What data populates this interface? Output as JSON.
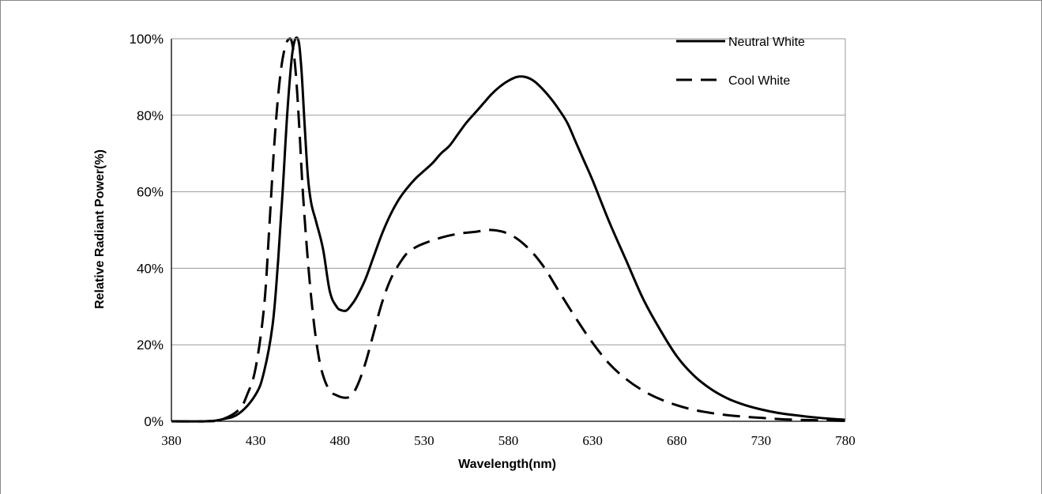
{
  "chart_data": {
    "type": "line",
    "title": "",
    "xlabel": "Wavelength(nm)",
    "ylabel": "Relative Radiant Power(%)",
    "xlim": [
      380,
      780
    ],
    "ylim": [
      0,
      100
    ],
    "x_ticks": [
      380,
      430,
      480,
      530,
      580,
      630,
      680,
      730,
      780
    ],
    "x_tick_labels": [
      "380",
      "430",
      "480",
      "530",
      "580",
      "630",
      "680",
      "730",
      "780"
    ],
    "y_ticks": [
      0,
      20,
      40,
      60,
      80,
      100
    ],
    "y_tick_labels": [
      "0%",
      "20%",
      "40%",
      "60%",
      "80%",
      "100%"
    ],
    "grid": "horizontal",
    "legend_position": "top-right",
    "colors": {
      "line": "#000000",
      "grid": "#999999",
      "frame": "#888888"
    },
    "series": [
      {
        "name": "Neutral White",
        "style": "solid",
        "x": [
          380,
          400,
          410,
          420,
          430,
          435,
          440,
          443,
          446,
          449,
          452,
          455,
          457,
          459,
          461,
          463,
          466,
          470,
          474,
          478,
          481,
          484,
          487,
          490,
          495,
          500,
          505,
          510,
          515,
          520,
          525,
          530,
          535,
          540,
          545,
          550,
          555,
          560,
          565,
          570,
          575,
          580,
          585,
          590,
          595,
          600,
          605,
          610,
          615,
          620,
          625,
          630,
          640,
          650,
          660,
          670,
          680,
          690,
          700,
          710,
          720,
          730,
          740,
          750,
          760,
          770,
          780
        ],
        "y": [
          0,
          0,
          0.5,
          2,
          7,
          13,
          25,
          40,
          60,
          82,
          97,
          100,
          93,
          78,
          64,
          57,
          52,
          45,
          34,
          30,
          29,
          29,
          30.5,
          32.5,
          37,
          43,
          49,
          54,
          58,
          61,
          63.5,
          65.5,
          67.5,
          70,
          72,
          75,
          78,
          80.5,
          83,
          85.5,
          87.5,
          89,
          90,
          90,
          89,
          87,
          84.5,
          81.5,
          78,
          73,
          68,
          63,
          52,
          42,
          32,
          24,
          17,
          12,
          8.5,
          6,
          4.3,
          3.1,
          2.2,
          1.6,
          1.1,
          0.7,
          0.4
        ]
      },
      {
        "name": "Cool White",
        "style": "dashed",
        "x": [
          380,
          400,
          410,
          420,
          425,
          430,
          435,
          438,
          441,
          444,
          447,
          450,
          452,
          454,
          456,
          458,
          461,
          464,
          467,
          470,
          474,
          478,
          482,
          486,
          490,
          495,
          500,
          505,
          510,
          515,
          520,
          525,
          530,
          540,
          550,
          560,
          570,
          580,
          590,
          600,
          610,
          620,
          630,
          640,
          650,
          660,
          670,
          680,
          690,
          700,
          710,
          720,
          730,
          740,
          750,
          760,
          770,
          780
        ],
        "y": [
          0,
          0,
          0.5,
          3,
          7,
          14,
          30,
          50,
          72,
          88,
          97,
          100,
          98,
          90,
          76,
          60,
          42,
          28,
          18,
          12,
          8,
          6.8,
          6.2,
          6.5,
          9,
          15,
          23,
          31,
          37,
          41,
          44,
          45.5,
          46.5,
          48,
          49,
          49.5,
          50,
          49,
          46,
          41,
          34,
          27,
          20.5,
          15,
          11,
          8,
          5.8,
          4.2,
          3,
          2.2,
          1.6,
          1.2,
          0.9,
          0.6,
          0.4,
          0.3,
          0.2,
          0.1
        ]
      }
    ]
  }
}
